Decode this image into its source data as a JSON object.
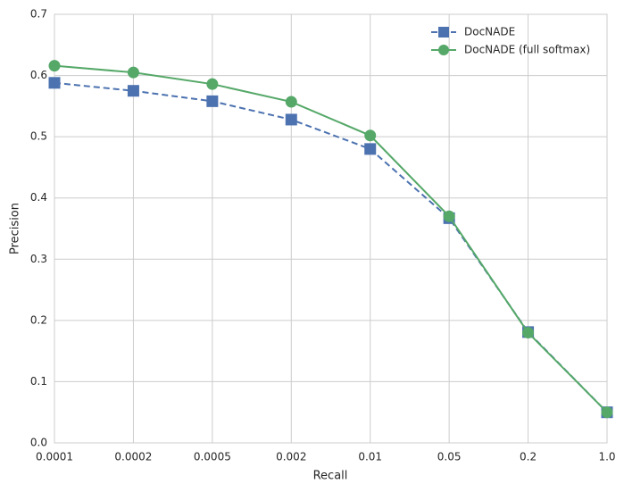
{
  "chart_data": {
    "type": "line",
    "xlabel": "Recall",
    "ylabel": "Precision",
    "categories": [
      "0.0001",
      "0.0002",
      "0.0005",
      "0.002",
      "0.01",
      "0.05",
      "0.2",
      "1.0"
    ],
    "series": [
      {
        "name": "DocNADE",
        "color": "#4c72b0",
        "linestyle": "dashed",
        "marker": "square",
        "values": [
          0.588,
          0.575,
          0.558,
          0.528,
          0.48,
          0.367,
          0.181,
          0.05
        ]
      },
      {
        "name": "DocNADE (full softmax)",
        "color": "#55a868",
        "linestyle": "solid",
        "marker": "circle",
        "values": [
          0.616,
          0.605,
          0.586,
          0.557,
          0.502,
          0.37,
          0.18,
          0.05
        ]
      }
    ],
    "ylim": [
      0,
      0.7
    ],
    "yticks": [
      {
        "value": 0,
        "label": "0.0"
      },
      0.1,
      0.2,
      0.3,
      0.4,
      0.5,
      0.6,
      0.7
    ],
    "grid": true,
    "legend": "upper right"
  }
}
